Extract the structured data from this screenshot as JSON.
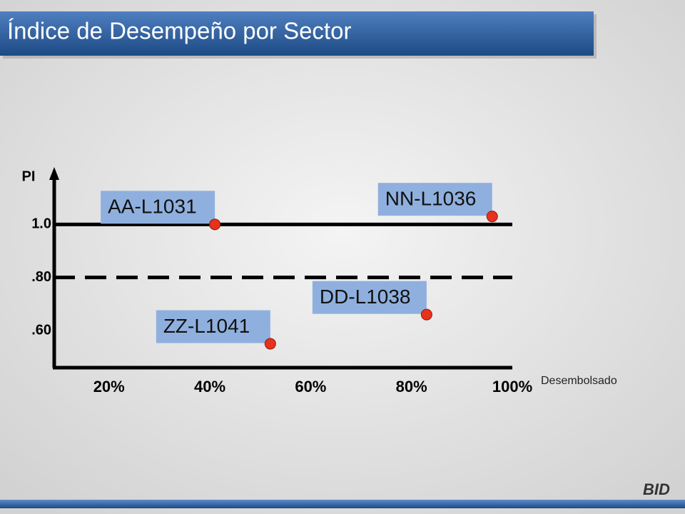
{
  "chart_data": {
    "type": "scatter",
    "title": "Índice de Desempeño por Sector",
    "y_label": "PI",
    "x_label": "Desembolsado",
    "logo": "BID",
    "labels": [
      "AA-L1031",
      "NN-L1036",
      "DD-L1038",
      "ZZ-L1041"
    ],
    "x": [
      41,
      96,
      83,
      52
    ],
    "values": [
      1.0,
      1.03,
      0.66,
      0.55
    ],
    "color": "#e8321c",
    "label_color": "#8fb0de",
    "xlim": [
      9,
      100
    ],
    "xticks": [
      {
        "value": 20,
        "label": "20%"
      },
      {
        "value": 40,
        "label": "40%"
      },
      {
        "value": 60,
        "label": "60%"
      },
      {
        "value": 80,
        "label": "80%"
      },
      {
        "value": 100,
        "label": "100%"
      }
    ],
    "ylim": [
      0.46,
      1.2
    ],
    "yticks": [
      {
        "value": 1,
        "label": "1.0"
      },
      {
        "value": 0.8,
        "label": ".80"
      },
      {
        "value": 0.6,
        "label": ".60"
      }
    ],
    "reference_lines": [
      {
        "value": 1,
        "style": "solid"
      },
      {
        "value": 0.8,
        "style": "dashed"
      }
    ],
    "grid": false
  }
}
